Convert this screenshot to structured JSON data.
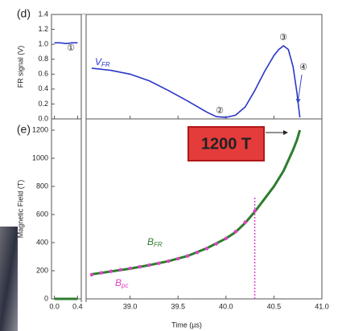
{
  "chart_data": [
    {
      "type": "line",
      "panel_label": "(d)",
      "y_label": "FR signal (V)",
      "xlim": [
        -0.05,
        41.0
      ],
      "x_break": [
        0.45,
        38.55
      ],
      "xticks": [
        0,
        0.4,
        39,
        39.5,
        40,
        40.5,
        41
      ],
      "ylim": [
        0,
        1.4
      ],
      "yticks": [
        {
          "value": 0,
          "label": "0.0"
        },
        0.2,
        0.4,
        0.6,
        0.8,
        {
          "value": 1,
          "label": "1.0"
        },
        1.2,
        1.4
      ],
      "series": [
        {
          "label": {
            "main": "V",
            "sub": "FR"
          },
          "color": "#2a36c8",
          "x": [
            0,
            0.1,
            0.2,
            0.3,
            0.4,
            38.6,
            38.8,
            39.0,
            39.2,
            39.4,
            39.6,
            39.8,
            39.9,
            40.0,
            40.1,
            40.2,
            40.3,
            40.4,
            40.5,
            40.55,
            40.6,
            40.65,
            40.7,
            40.74,
            40.77
          ],
          "values": [
            1.02,
            1.02,
            1.01,
            1.02,
            1.02,
            0.68,
            0.65,
            0.6,
            0.51,
            0.38,
            0.24,
            0.09,
            0.03,
            0.02,
            0.05,
            0.16,
            0.38,
            0.63,
            0.85,
            0.93,
            0.98,
            0.93,
            0.7,
            0.35,
            0.02
          ]
        }
      ],
      "annotations": [
        "①",
        "②",
        "③",
        "④"
      ]
    },
    {
      "type": "line",
      "panel_label": "(e)",
      "y_label": "Magnetic Field (T)",
      "x_label": "Time (µs)",
      "xlim": [
        -0.05,
        41.0
      ],
      "x_break": [
        0.45,
        38.55
      ],
      "xticks": [
        {
          "value": 0,
          "label": "0.0"
        },
        0.4,
        {
          "value": 39,
          "label": "39.0"
        },
        39.5,
        {
          "value": 40,
          "label": "40.0"
        },
        40.5,
        {
          "value": 41,
          "label": "41.0"
        }
      ],
      "ylim": [
        0,
        1280
      ],
      "yticks": [
        0,
        200,
        400,
        600,
        800,
        1000,
        1200
      ],
      "series": [
        {
          "label": {
            "main": "B",
            "sub": "FR"
          },
          "color": "#2e7d2e",
          "style": "line",
          "x": [
            0,
            0.2,
            0.4,
            38.6,
            38.8,
            39.0,
            39.2,
            39.4,
            39.6,
            39.8,
            40.0,
            40.1,
            40.2,
            40.3,
            40.4,
            40.5,
            40.6,
            40.7,
            40.74,
            40.77
          ],
          "values": [
            0,
            0,
            0,
            175,
            195,
            215,
            240,
            268,
            305,
            360,
            430,
            475,
            540,
            620,
            710,
            800,
            910,
            1060,
            1130,
            1200
          ]
        },
        {
          "label": {
            "main": "B",
            "sub": "pc"
          },
          "color": "#e040c8",
          "style": "dots",
          "x": [
            38.6,
            38.7,
            38.8,
            38.9,
            39.0,
            39.1,
            39.2,
            39.3,
            39.4,
            39.5,
            39.6,
            39.7,
            39.8,
            39.9,
            40.0,
            40.1,
            40.2,
            40.3
          ],
          "values": [
            172,
            185,
            196,
            207,
            217,
            228,
            240,
            253,
            268,
            286,
            305,
            330,
            358,
            392,
            430,
            478,
            545,
            625
          ]
        }
      ],
      "marker_x": 40.3,
      "marker_top": 725,
      "callout": "1200 T"
    }
  ]
}
